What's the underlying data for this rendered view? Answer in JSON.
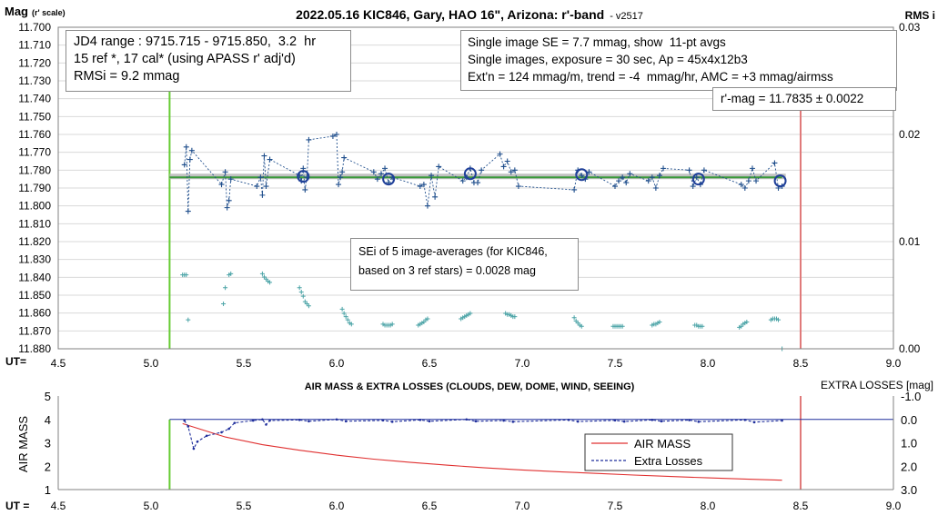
{
  "title": "2022.05.16 KIC846, Gary, HAO 16\", Arizona: r'-band",
  "version": "- v2517",
  "top_chart_labels": {
    "y_left": "Mag",
    "y_left_unit": "(r' scale)",
    "y_right": "RMS i",
    "x_label": "UT="
  },
  "info_left": {
    "line1": "JD4 range : 9715.715 - 9715.850,  3.2  hr",
    "line2": "15 ref *, 17 cal* (using APASS r' adj'd)",
    "line3": "RMSi = 9.2 mmag"
  },
  "info_right": {
    "line1": "Single image SE = 7.7 mmag, show  11-pt avgs",
    "line2": "Single images, exposure = 30 sec, Ap = 45x4x12b3",
    "line3": "Ext'n = 124 mmag/m, trend = -4  mmag/hr, AMC = +3 mmag/airmss"
  },
  "mag_result": "r'-mag = 11.7835 ± 0.0022",
  "sei_note": {
    "line1": "SEi of 5 image-averages (for KIC846,",
    "line2": "based on 3 ref stars) = 0.0028 mag"
  },
  "bottom_chart_labels": {
    "title": "AIR MASS & EXTRA LOSSES (CLOUDS, DEW, DOME, WIND, SEEING)",
    "y_left": "AIR MASS",
    "y_right": "EXTRA LOSSES [mag]",
    "x_label": "UT ="
  },
  "legend": {
    "airmass": "AIR MASS",
    "losses": "Extra Losses"
  },
  "colors": {
    "mag_points": "#1f4e8c",
    "avg_circles": "#1f3f99",
    "fit_line": "#3a9a3a",
    "mean_band": "#b8b8b8",
    "rms_points": "#4aa3a6",
    "start_marker": "#66cc33",
    "end_marker": "#e07a7a",
    "airmass_line": "#e03030",
    "losses_line": "#1f2e9c"
  },
  "chart_data": [
    {
      "type": "scatter",
      "title": "2022.05.16 KIC846, Gary, HAO 16\", Arizona: r'-band",
      "xlabel": "UT=",
      "ylabel": "Mag (r' scale)",
      "y2label": "RMS i",
      "xlim": [
        4.5,
        9.0
      ],
      "x_ticks": [
        "4.5",
        "5.0",
        "5.5",
        "6.0",
        "6.5",
        "7.0",
        "7.5",
        "8.0",
        "8.5",
        "9.0"
      ],
      "ylim": [
        11.88,
        11.7
      ],
      "y_ticks": [
        "11.700",
        "11.710",
        "11.720",
        "11.730",
        "11.740",
        "11.750",
        "11.760",
        "11.770",
        "11.780",
        "11.790",
        "11.800",
        "11.810",
        "11.820",
        "11.830",
        "11.840",
        "11.850",
        "11.860",
        "11.870",
        "11.880"
      ],
      "y2lim": [
        0.0,
        0.03
      ],
      "y2_ticks": [
        "0.00",
        "0.01",
        "0.02",
        "0.03"
      ],
      "grid": true,
      "vertical_markers": {
        "start": 5.1,
        "end": 8.5
      },
      "mean_mag": 11.7835,
      "series": [
        {
          "name": "single images",
          "x": [
            5.18,
            5.19,
            5.2,
            5.21,
            5.22,
            5.38,
            5.4,
            5.41,
            5.42,
            5.43,
            5.57,
            5.59,
            5.6,
            5.61,
            5.62,
            5.64,
            5.8,
            5.81,
            5.82,
            5.83,
            5.84,
            5.85,
            5.98,
            6.0,
            6.01,
            6.02,
            6.03,
            6.04,
            6.2,
            6.22,
            6.24,
            6.26,
            6.28,
            6.3,
            6.45,
            6.47,
            6.49,
            6.51,
            6.53,
            6.55,
            6.68,
            6.7,
            6.72,
            6.74,
            6.76,
            6.78,
            6.88,
            6.9,
            6.92,
            6.94,
            6.96,
            6.98,
            7.28,
            7.3,
            7.32,
            7.34,
            7.36,
            7.5,
            7.52,
            7.54,
            7.56,
            7.58,
            7.68,
            7.7,
            7.72,
            7.74,
            7.76,
            7.9,
            7.92,
            7.94,
            7.96,
            7.98,
            8.18,
            8.2,
            8.22,
            8.24,
            8.26,
            8.36,
            8.38,
            8.4
          ],
          "y": [
            11.777,
            11.767,
            11.803,
            11.774,
            11.769,
            11.788,
            11.781,
            11.801,
            11.797,
            11.785,
            11.789,
            11.784,
            11.794,
            11.772,
            11.789,
            11.774,
            11.783,
            11.786,
            11.779,
            11.791,
            11.784,
            11.763,
            11.761,
            11.76,
            11.788,
            11.784,
            11.781,
            11.773,
            11.781,
            11.785,
            11.782,
            11.779,
            11.787,
            11.784,
            11.789,
            11.788,
            11.8,
            11.783,
            11.795,
            11.778,
            11.786,
            11.784,
            11.779,
            11.787,
            11.787,
            11.78,
            11.771,
            11.778,
            11.775,
            11.781,
            11.78,
            11.789,
            11.791,
            11.78,
            11.783,
            11.785,
            11.781,
            11.789,
            11.786,
            11.784,
            11.787,
            11.782,
            11.786,
            11.784,
            11.79,
            11.783,
            11.779,
            11.78,
            11.789,
            11.784,
            11.788,
            11.78,
            11.788,
            11.79,
            11.786,
            11.779,
            11.786,
            11.776,
            11.79,
            11.789
          ]
        },
        {
          "name": "11-pt averages",
          "x": [
            5.82,
            6.28,
            6.72,
            7.32,
            7.95,
            8.39
          ],
          "y": [
            11.7835,
            11.785,
            11.782,
            11.7825,
            11.785,
            11.786
          ]
        },
        {
          "name": "RMS i",
          "x": [
            5.17,
            5.18,
            5.19,
            5.2,
            5.39,
            5.4,
            5.42,
            5.43,
            5.6,
            5.61,
            5.62,
            5.63,
            5.64,
            5.8,
            5.81,
            5.82,
            5.83,
            5.84,
            5.85,
            6.03,
            6.04,
            6.05,
            6.06,
            6.07,
            6.08,
            6.25,
            6.26,
            6.27,
            6.28,
            6.29,
            6.3,
            6.44,
            6.45,
            6.46,
            6.47,
            6.48,
            6.49,
            6.67,
            6.68,
            6.69,
            6.7,
            6.71,
            6.72,
            6.91,
            6.92,
            6.93,
            6.94,
            6.95,
            6.96,
            7.28,
            7.29,
            7.3,
            7.31,
            7.32,
            7.49,
            7.5,
            7.51,
            7.52,
            7.53,
            7.54,
            7.7,
            7.71,
            7.72,
            7.73,
            7.74,
            7.93,
            7.94,
            7.95,
            7.96,
            7.97,
            8.17,
            8.18,
            8.19,
            8.2,
            8.21,
            8.34,
            8.35,
            8.36,
            8.37,
            8.38,
            8.4
          ],
          "y": [
            0.0069,
            0.0069,
            0.0069,
            0.0027,
            0.0042,
            0.0057,
            0.0069,
            0.007,
            0.007,
            0.0067,
            0.0065,
            0.0063,
            0.0062,
            0.0057,
            0.0053,
            0.0049,
            0.0044,
            0.0042,
            0.004,
            0.0037,
            0.0033,
            0.003,
            0.0027,
            0.0024,
            0.0023,
            0.0023,
            0.0022,
            0.0022,
            0.0022,
            0.0022,
            0.0023,
            0.0022,
            0.0023,
            0.0024,
            0.0025,
            0.0027,
            0.0028,
            0.0028,
            0.0029,
            0.003,
            0.0031,
            0.0032,
            0.0033,
            0.0033,
            0.0032,
            0.0032,
            0.0031,
            0.003,
            0.003,
            0.0029,
            0.0026,
            0.0024,
            0.0022,
            0.0021,
            0.0021,
            0.0021,
            0.0021,
            0.0021,
            0.0021,
            0.0021,
            0.0022,
            0.0023,
            0.0023,
            0.0024,
            0.0025,
            0.0022,
            0.0022,
            0.0021,
            0.0021,
            0.0021,
            0.002,
            0.0021,
            0.0023,
            0.0024,
            0.0025,
            0.0027,
            0.0028,
            0.0028,
            0.0028,
            0.0027,
            0.0
          ]
        }
      ]
    },
    {
      "type": "line",
      "title": "AIR MASS & EXTRA LOSSES (CLOUDS, DEW, DOME, WIND, SEEING)",
      "xlabel": "UT =",
      "ylabel": "AIR MASS",
      "y2label": "EXTRA LOSSES [mag]",
      "xlim": [
        4.5,
        9.0
      ],
      "x_ticks": [
        "4.5",
        "5.0",
        "5.5",
        "6.0",
        "6.5",
        "7.0",
        "7.5",
        "8.0",
        "8.5",
        "9.0"
      ],
      "ylim": [
        1,
        5
      ],
      "y_ticks": [
        "1",
        "2",
        "3",
        "4",
        "5"
      ],
      "y2lim": [
        3.0,
        -1.0
      ],
      "y2_ticks": [
        "-1.0",
        "0.0",
        "1.0",
        "2.0",
        "3.0"
      ],
      "grid": false,
      "legend_position": "lower-right",
      "series": [
        {
          "name": "AIR MASS",
          "axis": "left",
          "x": [
            5.17,
            5.4,
            5.6,
            5.8,
            6.0,
            6.2,
            6.4,
            6.6,
            6.8,
            7.0,
            7.2,
            7.4,
            7.6,
            7.8,
            8.0,
            8.2,
            8.4
          ],
          "y": [
            3.82,
            3.25,
            2.92,
            2.68,
            2.47,
            2.3,
            2.16,
            2.04,
            1.93,
            1.84,
            1.76,
            1.69,
            1.62,
            1.56,
            1.5,
            1.45,
            1.4
          ]
        },
        {
          "name": "Extra Losses",
          "axis": "right",
          "x": [
            5.18,
            5.2,
            5.23,
            5.25,
            5.3,
            5.38,
            5.42,
            5.45,
            5.55,
            5.6,
            5.62,
            5.64,
            5.8,
            5.85,
            6.0,
            6.05,
            6.25,
            6.3,
            6.45,
            6.5,
            6.7,
            6.75,
            6.9,
            6.95,
            7.25,
            7.3,
            7.5,
            7.55,
            7.7,
            7.75,
            7.9,
            7.95,
            8.2,
            8.25,
            8.4
          ],
          "y": [
            0.05,
            0.3,
            1.25,
            0.95,
            0.7,
            0.55,
            0.4,
            0.15,
            0.05,
            0.0,
            0.22,
            0.05,
            0.02,
            0.08,
            0.0,
            0.08,
            0.04,
            0.1,
            0.02,
            0.08,
            0.0,
            0.08,
            0.05,
            0.1,
            0.02,
            0.09,
            0.04,
            0.09,
            0.02,
            0.08,
            0.03,
            0.1,
            0.02,
            0.12,
            0.05
          ]
        }
      ]
    }
  ]
}
